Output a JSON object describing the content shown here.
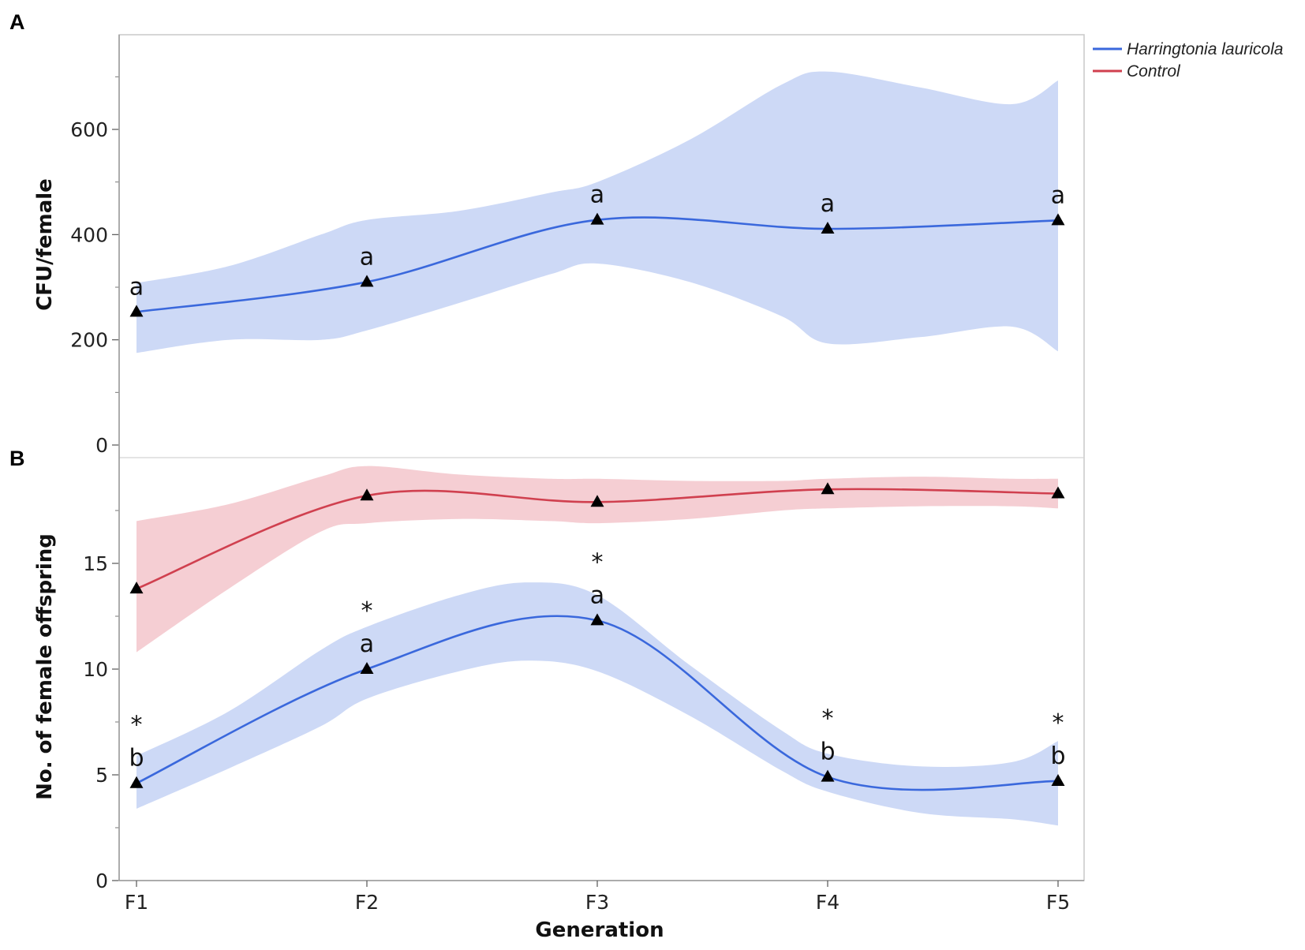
{
  "panels": {
    "top_letter": "A",
    "bottom_letter": "B"
  },
  "colors": {
    "blue_line": "#3a68dc",
    "blue_band": "#cdd9f6",
    "red_line": "#d0404f",
    "red_band": "#f5ced3",
    "marker": "#000000",
    "frame": "#c8c8c8"
  },
  "legend": {
    "items": [
      {
        "label": "Harringtonia lauricola",
        "color": "#3a68dc"
      },
      {
        "label": "Control",
        "color": "#d0404f"
      }
    ]
  },
  "chart_data": [
    {
      "type": "line",
      "panel": "A",
      "title": "",
      "xlabel": "Generation",
      "ylabel": "CFU/female",
      "categories": [
        "F1",
        "F2",
        "F3",
        "F4",
        "F5"
      ],
      "ylim": [
        0,
        780
      ],
      "yticks": [
        0,
        200,
        400,
        600
      ],
      "grid": false,
      "series": [
        {
          "name": "Harringtonia lauricola",
          "color": "#3a68dc",
          "values": [
            253,
            310,
            428,
            411,
            427
          ],
          "letters": [
            "a",
            "a",
            "a",
            "a",
            "a"
          ],
          "star": [
            false,
            false,
            false,
            false,
            false
          ],
          "band": {
            "x": [
              0,
              0.4,
              0.8,
              1.0,
              1.4,
              1.8,
              2.0,
              2.4,
              2.8,
              3.0,
              3.4,
              3.8,
              4.0
            ],
            "upper": [
              308,
              340,
              400,
              428,
              445,
              480,
              500,
              580,
              685,
              710,
              680,
              648,
              693
            ],
            "lower": [
              175,
              200,
              200,
              218,
              270,
              325,
              345,
              310,
              245,
              193,
              205,
              225,
              178
            ]
          }
        }
      ]
    },
    {
      "type": "line",
      "panel": "B",
      "title": "",
      "xlabel": "Generation",
      "ylabel": "No. of female offspring",
      "categories": [
        "F1",
        "F2",
        "F3",
        "F4",
        "F5"
      ],
      "ylim": [
        0,
        20
      ],
      "yticks": [
        0,
        5,
        10,
        15
      ],
      "grid": false,
      "series": [
        {
          "name": "Harringtonia lauricola",
          "color": "#3a68dc",
          "values": [
            4.6,
            10.0,
            12.3,
            4.9,
            4.7
          ],
          "letters": [
            "b",
            "a",
            "a",
            "b",
            "b"
          ],
          "star": [
            true,
            true,
            true,
            true,
            true
          ],
          "band": {
            "x": [
              0,
              0.4,
              0.8,
              1.0,
              1.4,
              1.7,
              2.0,
              2.4,
              2.8,
              3.0,
              3.4,
              3.8,
              4.0
            ],
            "upper": [
              5.9,
              8.0,
              10.9,
              12.0,
              13.5,
              14.1,
              13.5,
              10.2,
              7.1,
              6.0,
              5.4,
              5.6,
              6.6
            ],
            "lower": [
              3.4,
              5.3,
              7.3,
              8.6,
              9.9,
              10.4,
              9.9,
              7.8,
              5.2,
              4.2,
              3.2,
              2.9,
              2.6
            ]
          }
        },
        {
          "name": "Control",
          "color": "#d0404f",
          "values": [
            13.8,
            18.2,
            17.9,
            18.5,
            18.3
          ],
          "letters": [
            "",
            "",
            "",
            "",
            ""
          ],
          "star": [
            false,
            false,
            false,
            false,
            false
          ],
          "band": {
            "x": [
              0,
              0.4,
              0.8,
              1.0,
              1.4,
              1.8,
              2.0,
              2.4,
              2.8,
              3.0,
              3.4,
              3.8,
              4.0
            ],
            "upper": [
              17.0,
              17.8,
              19.1,
              19.6,
              19.2,
              19.0,
              19.0,
              18.9,
              18.9,
              19.0,
              19.1,
              19.0,
              19.0
            ],
            "lower": [
              10.8,
              13.8,
              16.5,
              16.9,
              17.1,
              17.0,
              16.9,
              17.1,
              17.5,
              17.6,
              17.7,
              17.7,
              17.6
            ]
          }
        }
      ]
    }
  ]
}
